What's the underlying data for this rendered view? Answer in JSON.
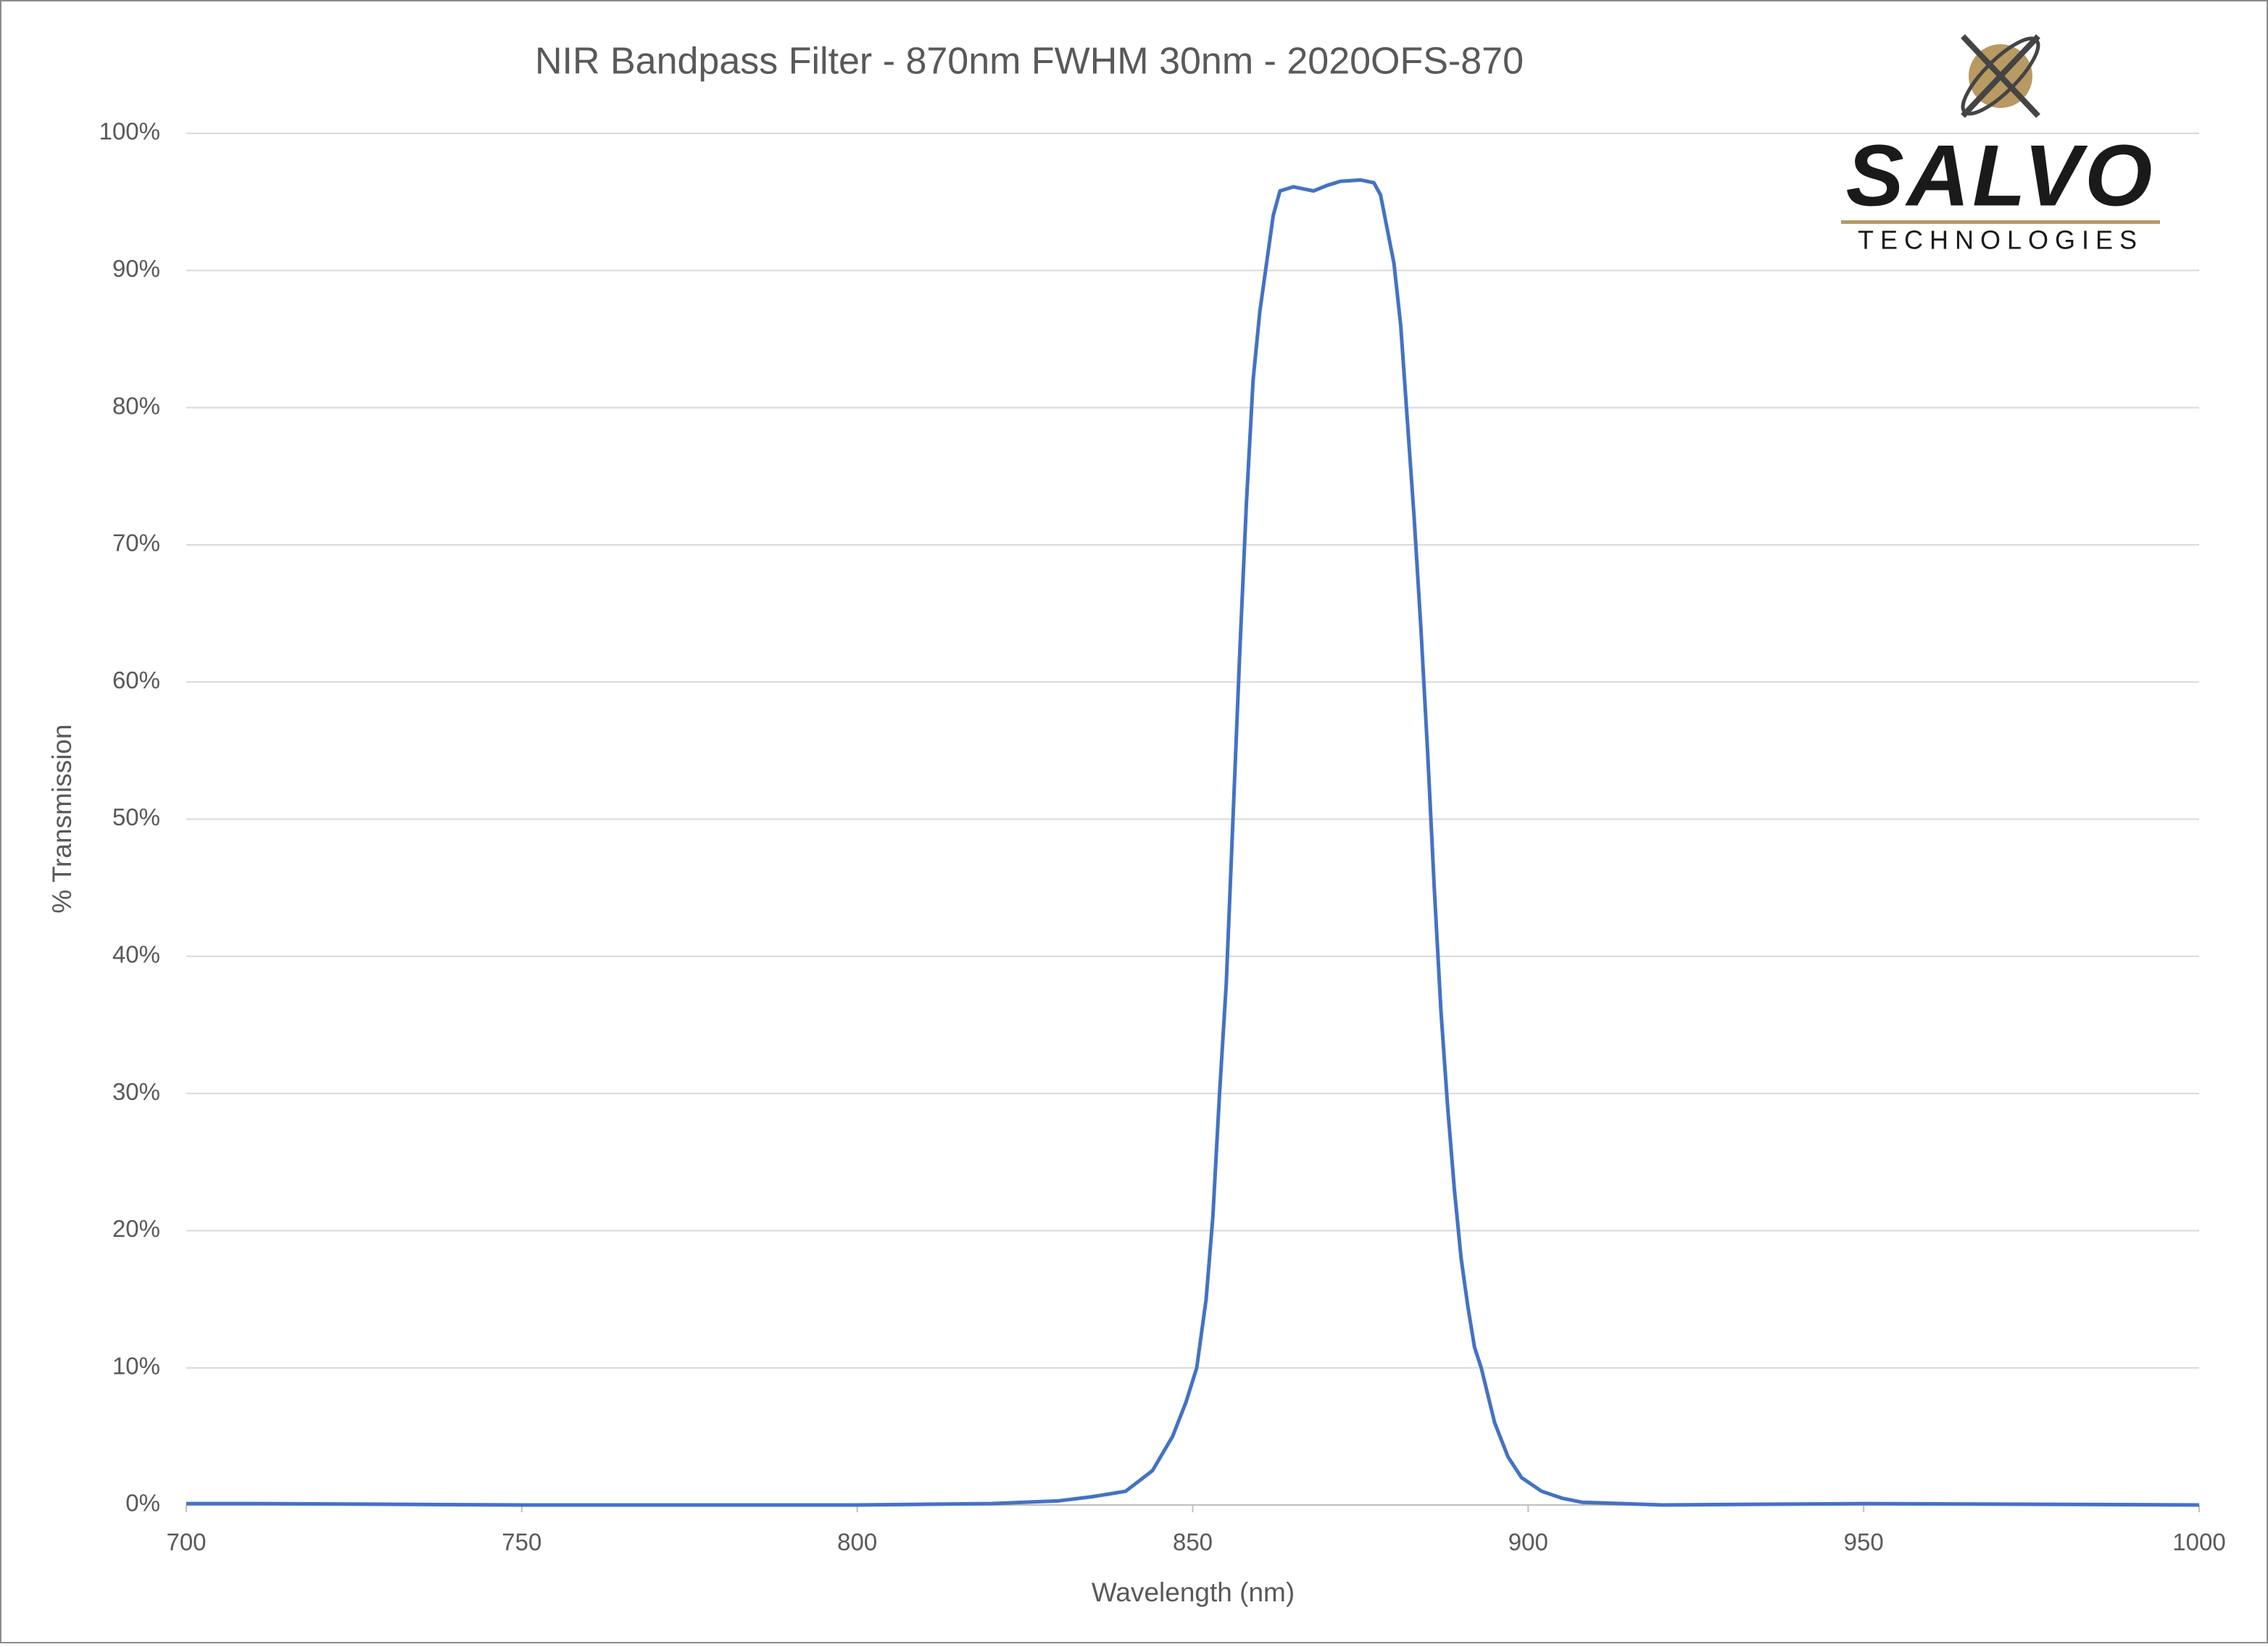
{
  "chart_data": {
    "type": "line",
    "title": "NIR Bandpass Filter - 870nm FWHM 30nm - 2020OFS-870",
    "xlabel": "Wavelength (nm)",
    "ylabel": "% Transmission",
    "x": [
      700,
      710,
      750,
      800,
      810,
      820,
      830,
      835,
      840,
      844,
      847,
      849,
      850.6,
      852,
      853,
      854,
      855,
      856,
      857,
      858,
      859,
      860,
      861,
      862,
      863,
      865,
      868,
      870,
      872,
      875,
      877,
      878,
      879,
      880,
      881,
      882,
      883,
      884,
      885,
      886,
      887,
      888,
      889,
      890,
      891,
      892,
      893,
      895,
      897,
      899,
      902,
      905,
      908,
      920,
      950,
      1000
    ],
    "series": [
      {
        "name": "% Transmission",
        "color": "#4472c4",
        "values": [
          0.1,
          0.1,
          0,
          0,
          0.05,
          0.1,
          0.3,
          0.6,
          1,
          2.5,
          5,
          7.5,
          10,
          15,
          21,
          30,
          38,
          50,
          62,
          73,
          82,
          87,
          90.5,
          94,
          95.8,
          96.1,
          95.8,
          96.2,
          96.5,
          96.6,
          96.4,
          95.5,
          93,
          90.5,
          86,
          79,
          72,
          64,
          55,
          45,
          36,
          29,
          23,
          18,
          14.5,
          11.5,
          10,
          6,
          3.5,
          2,
          1,
          0.5,
          0.2,
          0,
          0.1,
          0
        ]
      }
    ],
    "xlim": [
      700,
      1000
    ],
    "xticks": [
      700,
      750,
      800,
      850,
      900,
      950,
      1000
    ],
    "ylim": [
      0,
      100
    ],
    "yticks": [
      {
        "value": 0,
        "label": "0%"
      },
      {
        "value": 10,
        "label": "10%"
      },
      {
        "value": 20,
        "label": "20%"
      },
      {
        "value": 30,
        "label": "30%"
      },
      {
        "value": 40,
        "label": "40%"
      },
      {
        "value": 50,
        "label": "50%"
      },
      {
        "value": 60,
        "label": "60%"
      },
      {
        "value": 70,
        "label": "70%"
      },
      {
        "value": 80,
        "label": "80%"
      },
      {
        "value": 90,
        "label": "90%"
      },
      {
        "value": 100,
        "label": "100%"
      }
    ],
    "grid": true
  },
  "logo": {
    "name": "SALVO",
    "tagline": "TECHNOLOGIES"
  }
}
